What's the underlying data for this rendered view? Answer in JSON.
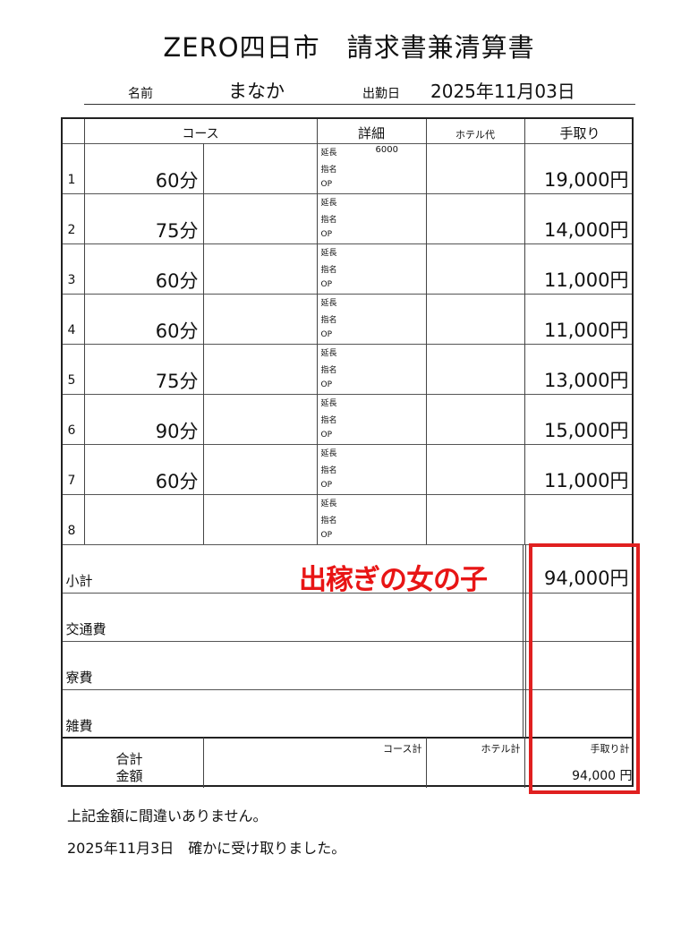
{
  "title": "ZERO四日市　請求書兼清算書",
  "header": {
    "name_label": "名前",
    "name_value": "まなか",
    "date_label": "出勤日",
    "date_value": "2025年11月03日"
  },
  "columns": {
    "course": "コース",
    "detail": "詳細",
    "hotel": "ホテル代",
    "take_home": "手取り"
  },
  "detail_labels": [
    "延長",
    "指名",
    "OP"
  ],
  "rows": [
    {
      "no": "1",
      "course": "60分",
      "extension": "6000",
      "take_home": "19,000円"
    },
    {
      "no": "2",
      "course": "75分",
      "extension": "",
      "take_home": "14,000円"
    },
    {
      "no": "3",
      "course": "60分",
      "extension": "",
      "take_home": "11,000円"
    },
    {
      "no": "4",
      "course": "60分",
      "extension": "",
      "take_home": "11,000円"
    },
    {
      "no": "5",
      "course": "75分",
      "extension": "",
      "take_home": "13,000円"
    },
    {
      "no": "6",
      "course": "90分",
      "extension": "",
      "take_home": "15,000円"
    },
    {
      "no": "7",
      "course": "60分",
      "extension": "",
      "take_home": "11,000円"
    },
    {
      "no": "8",
      "course": "",
      "extension": "",
      "take_home": ""
    }
  ],
  "summary": [
    {
      "label": "小計",
      "value": "94,000円"
    },
    {
      "label": "交通費",
      "value": ""
    },
    {
      "label": "寮費",
      "value": ""
    },
    {
      "label": "雑費",
      "value": ""
    }
  ],
  "total": {
    "label_1": "合計",
    "label_2": "金額",
    "course_total": "コース計",
    "hotel_total": "ホテル計",
    "take_home_total": "手取り計",
    "take_home_value": "94,000 円"
  },
  "overlay_text": "出稼ぎの女の子",
  "overlay_color": "#e81515",
  "footer": {
    "line1": "上記金額に間違いありません。",
    "line2": "2025年11月3日　確かに受け取りました。"
  }
}
